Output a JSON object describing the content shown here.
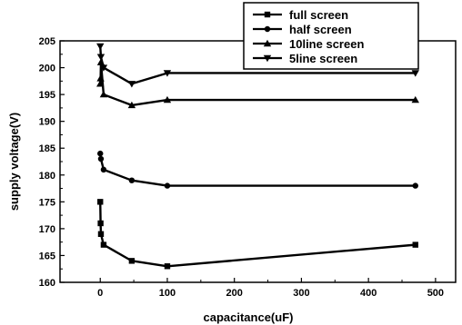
{
  "chart_data": {
    "type": "line",
    "xlabel": "capacitance(uF)",
    "ylabel": "supply voltage(V)",
    "xlim": [
      -60,
      530
    ],
    "ylim": [
      160,
      205
    ],
    "xticks": [
      0,
      100,
      200,
      300,
      400,
      500
    ],
    "yticks": [
      160,
      165,
      170,
      175,
      180,
      185,
      190,
      195,
      200,
      205
    ],
    "legend_position": "top-right",
    "series": [
      {
        "name": "full screen",
        "marker": "square",
        "points": [
          [
            0,
            175
          ],
          [
            0.5,
            171
          ],
          [
            1,
            169
          ],
          [
            5,
            167
          ],
          [
            47,
            164
          ],
          [
            100,
            163
          ],
          [
            470,
            167
          ]
        ]
      },
      {
        "name": "half screen",
        "marker": "circle",
        "points": [
          [
            0,
            184
          ],
          [
            1,
            183
          ],
          [
            5,
            181
          ],
          [
            47,
            179
          ],
          [
            100,
            178
          ],
          [
            470,
            178
          ]
        ]
      },
      {
        "name": "10line screen",
        "marker": "triangle-up",
        "points": [
          [
            0,
            197
          ],
          [
            0.5,
            198
          ],
          [
            1,
            201
          ],
          [
            5,
            195
          ],
          [
            47,
            193
          ],
          [
            100,
            194
          ],
          [
            470,
            194
          ]
        ]
      },
      {
        "name": "5line screen",
        "marker": "triangle-down",
        "points": [
          [
            0,
            204
          ],
          [
            1,
            202
          ],
          [
            5,
            200
          ],
          [
            47,
            197
          ],
          [
            100,
            199
          ],
          [
            470,
            199
          ]
        ]
      }
    ]
  }
}
